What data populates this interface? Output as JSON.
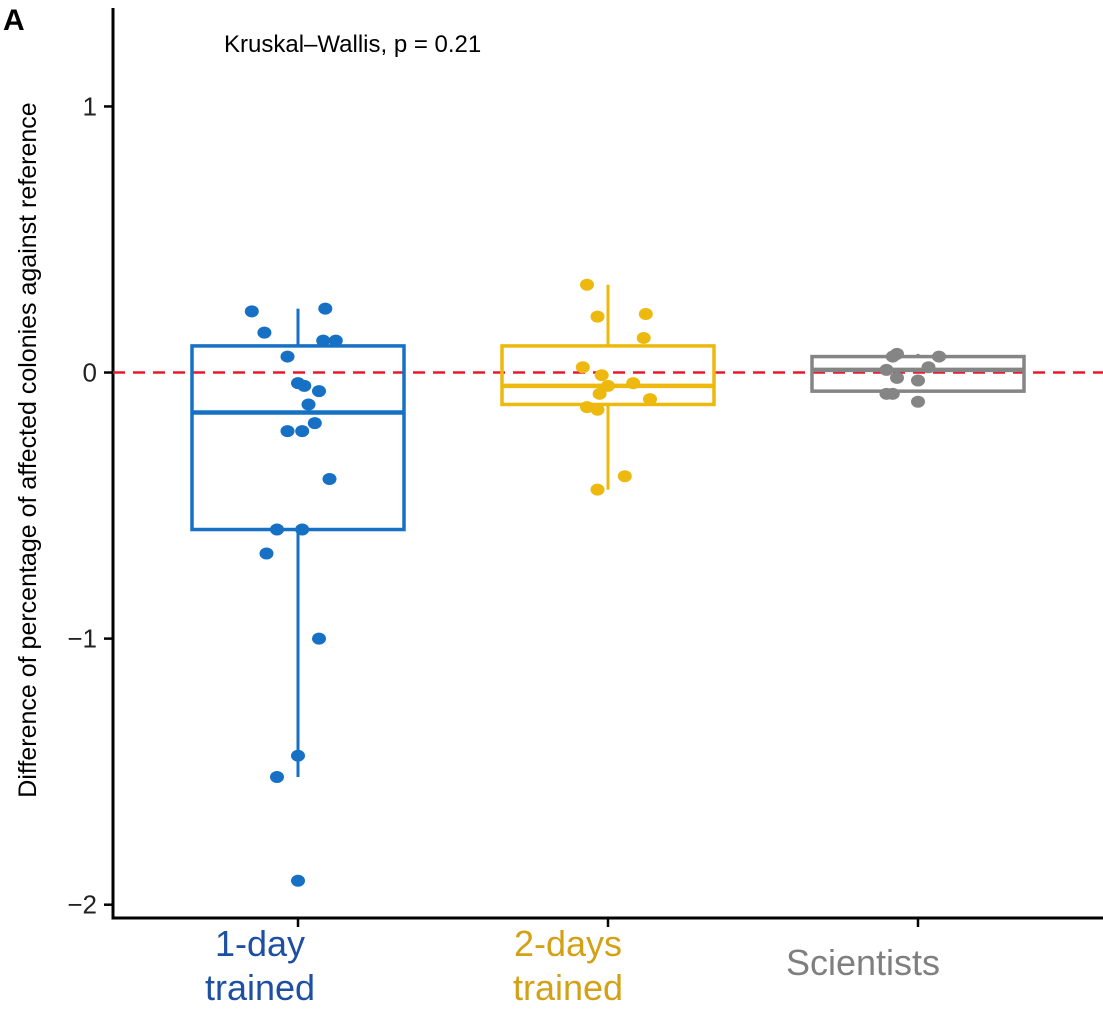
{
  "panel_label": "A",
  "chart_data": {
    "type": "box",
    "annotation": "Kruskal–Wallis, p = 0.21",
    "ylabel": "Difference of percentage of affected colonies against reference",
    "xlabel": "",
    "ylim": [
      -2.05,
      1.37
    ],
    "yticks": [
      1,
      0,
      -1,
      -2
    ],
    "ytick_labels": [
      "1",
      "0",
      "−1",
      "−2"
    ],
    "reference_line": {
      "y": 0,
      "color": "#e8192c",
      "style": "dashed"
    },
    "categories": [
      {
        "label_lines": [
          "1-day",
          "trained"
        ],
        "color": "#1670c4",
        "label_color": "#1d4fa3"
      },
      {
        "label_lines": [
          "2-days",
          "trained"
        ],
        "color": "#edb90f",
        "label_color": "#d4a116"
      },
      {
        "label_lines": [
          "Scientists"
        ],
        "color": "#858585",
        "label_color": "#7f7f7f"
      }
    ],
    "boxes": [
      {
        "whisker_low": -1.52,
        "q1": -0.59,
        "median": -0.15,
        "q3": 0.1,
        "whisker_high": 0.24
      },
      {
        "whisker_low": -0.44,
        "q1": -0.12,
        "median": -0.05,
        "q3": 0.1,
        "whisker_high": 0.33
      },
      {
        "whisker_low": -0.07,
        "q1": -0.07,
        "median": 0.01,
        "q3": 0.06,
        "whisker_high": 0.07
      }
    ],
    "points": [
      [
        [
          -0.22,
          0.23
        ],
        [
          0.13,
          0.24
        ],
        [
          -0.16,
          0.15
        ],
        [
          0.12,
          0.12
        ],
        [
          0.18,
          0.12
        ],
        [
          -0.05,
          0.06
        ],
        [
          0.0,
          -0.04
        ],
        [
          0.03,
          -0.05
        ],
        [
          0.1,
          -0.07
        ],
        [
          0.05,
          -0.12
        ],
        [
          -0.05,
          -0.22
        ],
        [
          0.02,
          -0.22
        ],
        [
          0.08,
          -0.19
        ],
        [
          0.15,
          -0.4
        ],
        [
          -0.1,
          -0.59
        ],
        [
          0.02,
          -0.59
        ],
        [
          -0.15,
          -0.68
        ],
        [
          0.1,
          -1.0
        ],
        [
          0.0,
          -1.44
        ],
        [
          -0.1,
          -1.52
        ],
        [
          0.0,
          -1.91
        ]
      ],
      [
        [
          -0.1,
          0.33
        ],
        [
          -0.05,
          0.21
        ],
        [
          0.18,
          0.22
        ],
        [
          0.17,
          0.13
        ],
        [
          -0.12,
          0.02
        ],
        [
          -0.03,
          -0.01
        ],
        [
          0.0,
          -0.05
        ],
        [
          0.12,
          -0.04
        ],
        [
          -0.1,
          -0.13
        ],
        [
          -0.05,
          -0.14
        ],
        [
          -0.04,
          -0.08
        ],
        [
          0.2,
          -0.1
        ],
        [
          0.08,
          -0.39
        ],
        [
          -0.05,
          -0.44
        ]
      ],
      [
        [
          -0.1,
          0.07
        ],
        [
          -0.12,
          0.06
        ],
        [
          0.1,
          0.06
        ],
        [
          0.05,
          0.02
        ],
        [
          -0.15,
          0.01
        ],
        [
          -0.1,
          -0.02
        ],
        [
          0.0,
          -0.03
        ],
        [
          -0.12,
          -0.08
        ],
        [
          -0.15,
          -0.08
        ],
        [
          0.0,
          -0.11
        ]
      ]
    ]
  }
}
